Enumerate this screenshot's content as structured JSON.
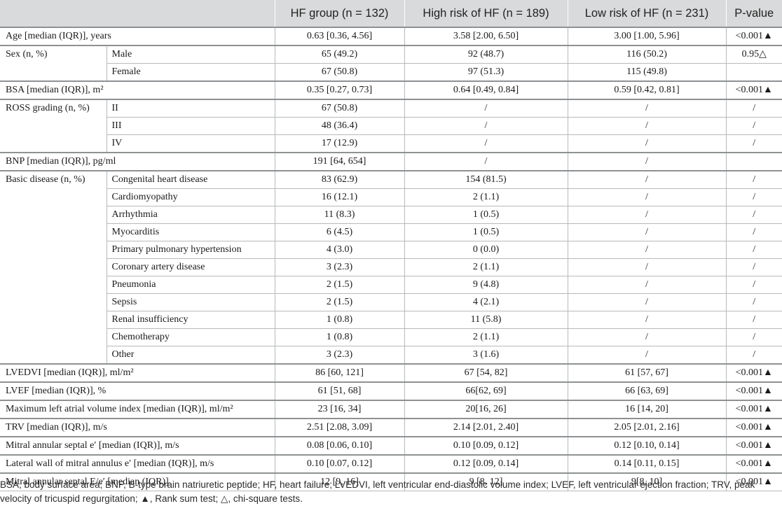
{
  "header": {
    "col_blank": "",
    "hf_group": "HF group (n = 132)",
    "high_risk": "High risk of HF (n = 189)",
    "low_risk": "Low risk of HF (n = 231)",
    "p_value": "P-value"
  },
  "rows": {
    "age": {
      "label": "Age [median (IQR)], years",
      "hf": "0.63 [0.36, 4.56]",
      "high": "3.58 [2.00, 6.50]",
      "low": "3.00 [1.00, 5.96]",
      "p": "<0.001▲"
    },
    "sex": {
      "label": "Sex (n, %)",
      "male": {
        "label": "Male",
        "hf": "65 (49.2)",
        "high": "92 (48.7)",
        "low": "116 (50.2)",
        "p": "0.95△"
      },
      "female": {
        "label": "Female",
        "hf": "67 (50.8)",
        "high": "97 (51.3)",
        "low": "115 (49.8)",
        "p": ""
      }
    },
    "bsa": {
      "label": "BSA [median (IQR)], m²",
      "hf": "0.35 [0.27, 0.73]",
      "high": "0.64 [0.49, 0.84]",
      "low": "0.59 [0.42, 0.81]",
      "p": "<0.001▲"
    },
    "ross": {
      "label": "ROSS grading (n, %)",
      "ii": {
        "label": "II",
        "hf": "67 (50.8)",
        "high": "/",
        "low": "/",
        "p": "/"
      },
      "iii": {
        "label": "III",
        "hf": "48 (36.4)",
        "high": "/",
        "low": "/",
        "p": "/"
      },
      "iv": {
        "label": "IV",
        "hf": "17 (12.9)",
        "high": "/",
        "low": "/",
        "p": "/"
      }
    },
    "bnp": {
      "label": "BNP [median (IQR)], pg/ml",
      "hf": "191 [64, 654]",
      "high": "/",
      "low": "/",
      "p": ""
    },
    "basic": {
      "label": "Basic disease (n, %)",
      "items": [
        {
          "label": "Congenital heart disease",
          "hf": "83 (62.9)",
          "high": "154 (81.5)",
          "low": "/",
          "p": "/"
        },
        {
          "label": "Cardiomyopathy",
          "hf": "16 (12.1)",
          "high": "2 (1.1)",
          "low": "/",
          "p": "/"
        },
        {
          "label": "Arrhythmia",
          "hf": "11 (8.3)",
          "high": "1 (0.5)",
          "low": "/",
          "p": "/"
        },
        {
          "label": "Myocarditis",
          "hf": "6 (4.5)",
          "high": "1 (0.5)",
          "low": "/",
          "p": "/"
        },
        {
          "label": "Primary pulmonary hypertension",
          "hf": "4 (3.0)",
          "high": "0 (0.0)",
          "low": "/",
          "p": "/"
        },
        {
          "label": "Coronary artery disease",
          "hf": "3 (2.3)",
          "high": "2 (1.1)",
          "low": "/",
          "p": "/"
        },
        {
          "label": "Pneumonia",
          "hf": "2 (1.5)",
          "high": "9 (4.8)",
          "low": "/",
          "p": "/"
        },
        {
          "label": "Sepsis",
          "hf": "2 (1.5)",
          "high": "4 (2.1)",
          "low": "/",
          "p": "/"
        },
        {
          "label": "Renal insufficiency",
          "hf": "1 (0.8)",
          "high": "11 (5.8)",
          "low": "/",
          "p": "/"
        },
        {
          "label": "Chemotherapy",
          "hf": "1 (0.8)",
          "high": "2 (1.1)",
          "low": "/",
          "p": "/"
        },
        {
          "label": "Other",
          "hf": "3 (2.3)",
          "high": "3 (1.6)",
          "low": "/",
          "p": "/"
        }
      ]
    },
    "lvedvi": {
      "label": "LVEDVI [median (IQR)], ml/m²",
      "hf": "86 [60, 121]",
      "high": "67 [54, 82]",
      "low": "61 [57, 67]",
      "p": "<0.001▲"
    },
    "lvef": {
      "label": "LVEF [median (IQR)], %",
      "hf": "61 [51, 68]",
      "high": "66[62, 69]",
      "low": "66 [63, 69]",
      "p": "<0.001▲"
    },
    "lavi": {
      "label": "Maximum left atrial volume index [median (IQR)], ml/m²",
      "hf": "23 [16, 34]",
      "high": "20[16, 26]",
      "low": "16 [14, 20]",
      "p": "<0.001▲"
    },
    "trv": {
      "label": "TRV [median (IQR)], m/s",
      "hf": "2.51 [2.08, 3.09]",
      "high": "2.14 [2.01, 2.40]",
      "low": "2.05 [2.01, 2.16]",
      "p": "<0.001▲"
    },
    "septal_e": {
      "label": "Mitral annular septal e′ [median (IQR)], m/s",
      "hf": "0.08 [0.06, 0.10]",
      "high": "0.10 [0.09, 0.12]",
      "low": "0.12 [0.10, 0.14]",
      "p": "<0.001▲"
    },
    "lateral_e": {
      "label": "Lateral wall of mitral annulus e′ [median (IQR)], m/s",
      "hf": "0.10 [0.07, 0.12]",
      "high": "0.12 [0.09, 0.14]",
      "low": "0.14 [0.11, 0.15]",
      "p": "<0.001▲"
    },
    "septal_ee": {
      "label": "Mitral annular septal E/e′ [median (IQR)]",
      "hf": "12 [9, 16]",
      "high": "9 [8, 12]",
      "low": "9[8, 10]",
      "p": "<0.001▲"
    }
  },
  "footnote": "BSA, body surface area; BNP, B-type brain natriuretic peptide; HF, heart failure; LVEDVI, left ventricular end-diastolic volume index; LVEF, left ventricular ejection fraction; TRV, peak velocity of tricuspid regurgitation; ▲, Rank sum test; △, chi-square tests."
}
